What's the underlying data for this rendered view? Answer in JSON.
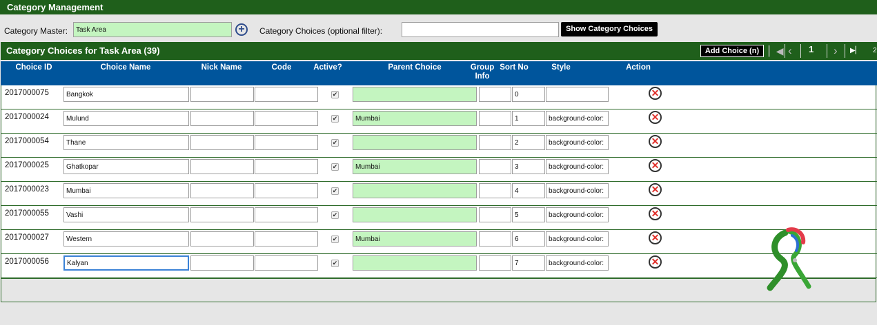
{
  "header": {
    "title": "Category Management"
  },
  "filters": {
    "master_label": "Category Master:",
    "master_value": "Task Area",
    "choices_label": "Category Choices (optional filter):",
    "choices_value": "",
    "show_button": "Show Category Choices"
  },
  "panel": {
    "title": "Category Choices for Task Area (39)",
    "add_button": "Add Choice (n)",
    "page": "1",
    "next_page_partial": "2"
  },
  "columns": [
    "Choice ID",
    "Choice Name",
    "Nick Name",
    "Code",
    "Active?",
    "Parent Choice",
    "Group Info",
    "Sort No",
    "Style",
    "Action"
  ],
  "rows": [
    {
      "id": "2017000075",
      "name": "Bangkok",
      "nick": "",
      "code": "",
      "active": true,
      "parent": "",
      "group": "",
      "sort": "0",
      "style": ""
    },
    {
      "id": "2017000024",
      "name": "Mulund",
      "nick": "",
      "code": "",
      "active": true,
      "parent": "Mumbai",
      "group": "",
      "sort": "1",
      "style": "background-color:"
    },
    {
      "id": "2017000054",
      "name": "Thane",
      "nick": "",
      "code": "",
      "active": true,
      "parent": "",
      "group": "",
      "sort": "2",
      "style": "background-color:"
    },
    {
      "id": "2017000025",
      "name": "Ghatkopar",
      "nick": "",
      "code": "",
      "active": true,
      "parent": "Mumbai",
      "group": "",
      "sort": "3",
      "style": "background-color:"
    },
    {
      "id": "2017000023",
      "name": "Mumbai",
      "nick": "",
      "code": "",
      "active": true,
      "parent": "",
      "group": "",
      "sort": "4",
      "style": "background-color:"
    },
    {
      "id": "2017000055",
      "name": "Vashi",
      "nick": "",
      "code": "",
      "active": true,
      "parent": "",
      "group": "",
      "sort": "5",
      "style": "background-color:"
    },
    {
      "id": "2017000027",
      "name": "Western",
      "nick": "",
      "code": "",
      "active": true,
      "parent": "Mumbai",
      "group": "",
      "sort": "6",
      "style": "background-color:"
    },
    {
      "id": "2017000056",
      "name": "Kalyan",
      "nick": "",
      "code": "",
      "active": true,
      "parent": "",
      "group": "",
      "sort": "7",
      "style": "background-color:"
    }
  ],
  "icons": {
    "add": "plus-circle-icon",
    "first": "first-page-icon",
    "prev": "prev-page-icon",
    "next": "next-page-icon",
    "last": "last-page-icon",
    "delete": "delete-circle-icon",
    "check": "checkmark-icon"
  },
  "colors": {
    "header_green": "#1f5f1b",
    "table_header_blue": "#00559c",
    "input_green": "#c4f5c0",
    "delete_red": "#e0302b"
  }
}
